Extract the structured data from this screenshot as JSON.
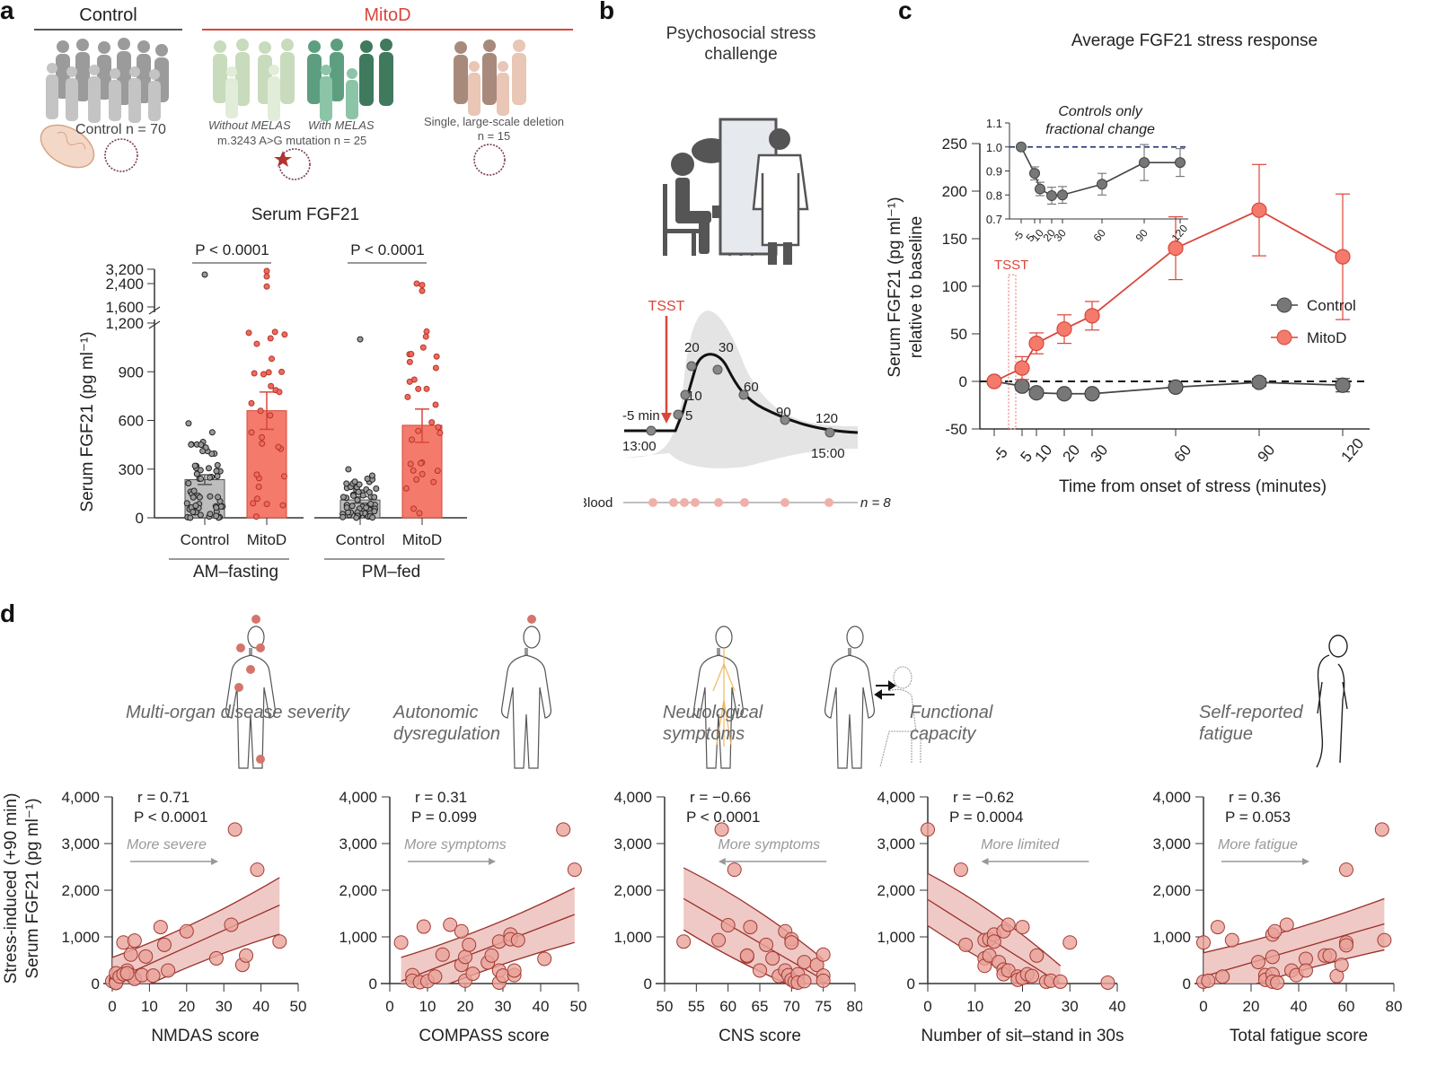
{
  "panel_letters": {
    "a": "a",
    "b": "b",
    "c": "c",
    "d": "d"
  },
  "panel_a": {
    "header_control": "Control",
    "header_mitod": "MitoD",
    "control_count": "Control n = 70",
    "without_melas": "Without MELAS",
    "with_melas": "With MELAS",
    "mutation": "m.3243 A>G mutation n = 25",
    "deletion": "Single, large-scale deletion",
    "deletion_n": "n = 15",
    "colors": {
      "control": "#555555",
      "mitod": "#d9463a",
      "bar_control": "#bdbdbd",
      "bar_mitod": "#f47b6b"
    }
  },
  "panel_b": {
    "title_line1": "Psychosocial stress",
    "title_line2": "challenge",
    "tsst_label": "TSST",
    "timepoints": [
      "-5 min",
      "5",
      "10",
      "20",
      "30",
      "60",
      "90",
      "120"
    ],
    "start_time": "13:00",
    "end_time": "15:00",
    "blood_label": "Blood",
    "blood_n": "n = 8",
    "blood_samples": 8
  },
  "chart_data": [
    {
      "id": "serum-fgf21",
      "type": "bar",
      "title": "Serum FGF21",
      "ylabel": "Serum FGF21 (pg ml⁻¹)",
      "yticks_lower": [
        "0",
        "300",
        "600",
        "900",
        "1,200"
      ],
      "yticks_upper": [
        "1,600",
        "2,400",
        "3,200"
      ],
      "ylim": [
        0,
        3200
      ],
      "axis_break": [
        1200,
        1600
      ],
      "groups": [
        {
          "label": "AM–fasting",
          "pvalue": "P < 0.0001",
          "categories": [
            "Control",
            "MitoD"
          ],
          "means": [
            235,
            660
          ],
          "sem": [
            [
              205,
              265
            ],
            [
              545,
              775
            ]
          ]
        },
        {
          "label": "PM–fed",
          "pvalue": "P < 0.0001",
          "categories": [
            "Control",
            "MitoD"
          ],
          "means": [
            110,
            570
          ],
          "sem": [
            [
              90,
              130
            ],
            [
              465,
              670
            ]
          ]
        }
      ]
    },
    {
      "id": "average-stress-response",
      "type": "line",
      "title": "Average FGF21 stress response",
      "xlabel": "Time from onset of stress (minutes)",
      "ylabel": "Serum FGF21 (pg ml⁻¹) relative to baseline",
      "x": [
        -5,
        5,
        10,
        20,
        30,
        60,
        90,
        120
      ],
      "xticks": [
        "-5",
        "5",
        "10",
        "20",
        "30",
        "60",
        "90",
        "120"
      ],
      "yticks": [
        "-50",
        "0",
        "50",
        "100",
        "150",
        "200",
        "250"
      ],
      "ylim": [
        -50,
        250
      ],
      "annotation": "TSST",
      "series": [
        {
          "name": "Control",
          "values": [
            0,
            -5,
            -12,
            -13,
            -13,
            -6,
            -1,
            -4
          ],
          "err": [
            0,
            3,
            3,
            3,
            3,
            3,
            4,
            7
          ],
          "color": "#666666"
        },
        {
          "name": "MitoD",
          "values": [
            0,
            14,
            40,
            55,
            69,
            140,
            180,
            131
          ],
          "err": [
            0,
            12,
            11,
            15,
            15,
            33,
            48,
            66
          ],
          "color": "#f26b5f"
        }
      ],
      "legend": "right",
      "inset": {
        "title_line1": "Controls only",
        "title_line2": "fractional change",
        "x": [
          -5,
          5,
          10,
          20,
          30,
          60,
          90,
          120
        ],
        "xticks": [
          "-5",
          "5",
          "10",
          "20",
          "30",
          "60",
          "90",
          "120"
        ],
        "yticks": [
          "0.7",
          "0.8",
          "0.9",
          "1.0",
          "1.1"
        ],
        "ylim": [
          0.7,
          1.1
        ],
        "values": [
          1.0,
          0.89,
          0.825,
          0.797,
          0.8,
          0.845,
          0.935,
          0.935
        ],
        "err": [
          0,
          0.027,
          0.028,
          0.035,
          0.035,
          0.045,
          0.075,
          0.058
        ],
        "reference": 1.0
      }
    },
    {
      "id": "nmdas",
      "type": "scatter",
      "category": "Multi-organ disease severity",
      "xlabel": "NMDAS score",
      "xticks": [
        "0",
        "10",
        "20",
        "30",
        "40",
        "50"
      ],
      "xlim": [
        0,
        50
      ],
      "yticks": [
        "0",
        "1,000",
        "2,000",
        "3,000",
        "4,000"
      ],
      "ylim": [
        0,
        4000
      ],
      "r": "r = 0.71",
      "p": "P < 0.0001",
      "arrow_label": "More severe",
      "arrow_dir": "right",
      "fit": {
        "x": [
          0,
          45
        ],
        "y": [
          60,
          1680
        ],
        "ci_low": [
          -400,
          1060
        ],
        "ci_high": [
          560,
          2270
        ]
      },
      "points": [
        [
          0,
          50
        ],
        [
          1,
          80
        ],
        [
          1,
          30
        ],
        [
          1,
          10
        ],
        [
          1,
          220
        ],
        [
          2,
          150
        ],
        [
          3,
          880
        ],
        [
          4,
          280
        ],
        [
          5,
          620
        ],
        [
          5,
          180
        ],
        [
          6,
          920
        ],
        [
          6,
          100
        ],
        [
          8,
          180
        ],
        [
          9,
          580
        ],
        [
          11,
          170
        ],
        [
          13,
          1210
        ],
        [
          14,
          830
        ],
        [
          15,
          280
        ],
        [
          20,
          1120
        ],
        [
          28,
          540
        ],
        [
          32,
          1260
        ],
        [
          33,
          3300
        ],
        [
          35,
          400
        ],
        [
          36,
          600
        ],
        [
          39,
          2440
        ],
        [
          45,
          900
        ],
        [
          3,
          200
        ],
        [
          4,
          220
        ]
      ]
    },
    {
      "id": "compass",
      "type": "scatter",
      "category": "Autonomic dysregulation",
      "xlabel": "COMPASS score",
      "xticks": [
        "0",
        "10",
        "20",
        "30",
        "40",
        "50"
      ],
      "xlim": [
        0,
        50
      ],
      "yticks": [
        "0",
        "1,000",
        "2,000",
        "3,000",
        "4,000"
      ],
      "ylim": [
        0,
        4000
      ],
      "r": "r = 0.31",
      "p": "P = 0.099",
      "arrow_label": "More symptoms",
      "arrow_dir": "right",
      "fit": {
        "x": [
          3,
          49
        ],
        "y": [
          50,
          1480
        ],
        "ci_low": [
          -430,
          880
        ],
        "ci_high": [
          560,
          2050
        ]
      },
      "points": [
        [
          3,
          880
        ],
        [
          6,
          180
        ],
        [
          6,
          60
        ],
        [
          8,
          30
        ],
        [
          9,
          1220
        ],
        [
          10,
          50
        ],
        [
          12,
          150
        ],
        [
          14,
          620
        ],
        [
          16,
          1260
        ],
        [
          19,
          1120
        ],
        [
          19,
          400
        ],
        [
          20,
          570
        ],
        [
          20,
          60
        ],
        [
          21,
          830
        ],
        [
          22,
          210
        ],
        [
          26,
          450
        ],
        [
          27,
          600
        ],
        [
          29,
          20
        ],
        [
          29,
          900
        ],
        [
          29,
          280
        ],
        [
          30,
          170
        ],
        [
          32,
          1050
        ],
        [
          32,
          950
        ],
        [
          33,
          180
        ],
        [
          33,
          280
        ],
        [
          34,
          930
        ],
        [
          41,
          530
        ],
        [
          46,
          3300
        ],
        [
          49,
          2440
        ]
      ]
    },
    {
      "id": "cns",
      "type": "scatter",
      "category": "Neurological symptoms",
      "xlabel": "CNS score",
      "xticks": [
        "50",
        "55",
        "60",
        "65",
        "70",
        "75",
        "80"
      ],
      "xlim": [
        50,
        80
      ],
      "yticks": [
        "0",
        "1,000",
        "2,000",
        "3,000",
        "4,000"
      ],
      "ylim": [
        0,
        4000
      ],
      "r": "r = −0.66",
      "p": "P < 0.0001",
      "arrow_label": "More symptoms",
      "arrow_dir": "left",
      "fit": {
        "x": [
          53,
          75
        ],
        "y": [
          1820,
          80
        ],
        "ci_low": [
          1150,
          -320
        ],
        "ci_high": [
          2480,
          520
        ]
      },
      "points": [
        [
          53,
          900
        ],
        [
          58.5,
          930
        ],
        [
          59,
          3300
        ],
        [
          60,
          1250
        ],
        [
          61,
          2440
        ],
        [
          63,
          580
        ],
        [
          63,
          600
        ],
        [
          63.5,
          1210
        ],
        [
          65,
          280
        ],
        [
          66,
          830
        ],
        [
          67,
          540
        ],
        [
          68,
          160
        ],
        [
          69,
          1120
        ],
        [
          69,
          280
        ],
        [
          69.5,
          180
        ],
        [
          70,
          950
        ],
        [
          70,
          880
        ],
        [
          70,
          80
        ],
        [
          70.5,
          40
        ],
        [
          71,
          200
        ],
        [
          71,
          20
        ],
        [
          72,
          460
        ],
        [
          72,
          50
        ],
        [
          74,
          400
        ],
        [
          75,
          620
        ],
        [
          75,
          170
        ],
        [
          75,
          60
        ]
      ]
    },
    {
      "id": "sit-stand",
      "type": "scatter",
      "category": "Functional capacity",
      "xlabel": "Number of sit–stand in 30s",
      "xticks": [
        "0",
        "10",
        "20",
        "30",
        "40"
      ],
      "xlim": [
        0,
        40
      ],
      "yticks": [
        "0",
        "1,000",
        "2,000",
        "3,000",
        "4,000"
      ],
      "ylim": [
        0,
        4000
      ],
      "r": "r = −0.62",
      "p": "P = 0.0004",
      "arrow_label": "More limited",
      "arrow_dir": "left",
      "fit": {
        "x": [
          0,
          28
        ],
        "y": [
          1800,
          0
        ],
        "ci_low": [
          1240,
          -300
        ],
        "ci_high": [
          2360,
          380
        ]
      },
      "points": [
        [
          0,
          3300
        ],
        [
          7,
          2440
        ],
        [
          8,
          830
        ],
        [
          12,
          930
        ],
        [
          12,
          540
        ],
        [
          12,
          380
        ],
        [
          13,
          950
        ],
        [
          13,
          600
        ],
        [
          14,
          1050
        ],
        [
          14,
          900
        ],
        [
          15,
          460
        ],
        [
          16,
          1120
        ],
        [
          16,
          300
        ],
        [
          16,
          200
        ],
        [
          17,
          1260
        ],
        [
          17,
          280
        ],
        [
          19,
          150
        ],
        [
          19,
          80
        ],
        [
          20,
          1210
        ],
        [
          20,
          120
        ],
        [
          21,
          200
        ],
        [
          22,
          160
        ],
        [
          23,
          600
        ],
        [
          25,
          40
        ],
        [
          26,
          60
        ],
        [
          28,
          40
        ],
        [
          30,
          880
        ],
        [
          38,
          20
        ]
      ]
    },
    {
      "id": "fatigue",
      "type": "scatter",
      "category": "Self-reported fatigue",
      "xlabel": "Total fatigue score",
      "xticks": [
        "0",
        "20",
        "40",
        "60",
        "80"
      ],
      "xlim": [
        0,
        80
      ],
      "yticks": [
        "0",
        "1,000",
        "2,000",
        "3,000",
        "4,000"
      ],
      "ylim": [
        0,
        4000
      ],
      "r": "r = 0.36",
      "p": "P = 0.053",
      "arrow_label": "More fatigue",
      "arrow_dir": "right",
      "fit": {
        "x": [
          0,
          76
        ],
        "y": [
          150,
          1280
        ],
        "ci_low": [
          -380,
          720
        ],
        "ci_high": [
          660,
          1820
        ]
      },
      "points": [
        [
          0,
          880
        ],
        [
          0,
          40
        ],
        [
          2,
          60
        ],
        [
          6,
          1210
        ],
        [
          8,
          150
        ],
        [
          12,
          930
        ],
        [
          23,
          460
        ],
        [
          26,
          180
        ],
        [
          26,
          80
        ],
        [
          29,
          1050
        ],
        [
          29,
          570
        ],
        [
          29,
          200
        ],
        [
          29,
          40
        ],
        [
          30,
          1120
        ],
        [
          31,
          20
        ],
        [
          35,
          1260
        ],
        [
          37,
          280
        ],
        [
          39,
          180
        ],
        [
          43,
          530
        ],
        [
          43,
          280
        ],
        [
          51,
          600
        ],
        [
          53,
          600
        ],
        [
          56,
          160
        ],
        [
          58,
          400
        ],
        [
          60,
          880
        ],
        [
          60,
          820
        ],
        [
          60,
          2440
        ],
        [
          75,
          3300
        ],
        [
          76,
          930
        ]
      ]
    }
  ],
  "panel_d": {
    "ylabel_line1": "Stress-induced (+90 min)",
    "ylabel_line2": "Serum FGF21 (pg ml⁻¹)",
    "point_color": "#e8a29a",
    "point_stroke": "#a33a32",
    "fit_color": "#9c2f2a",
    "band_color": "#e9b7b1"
  }
}
